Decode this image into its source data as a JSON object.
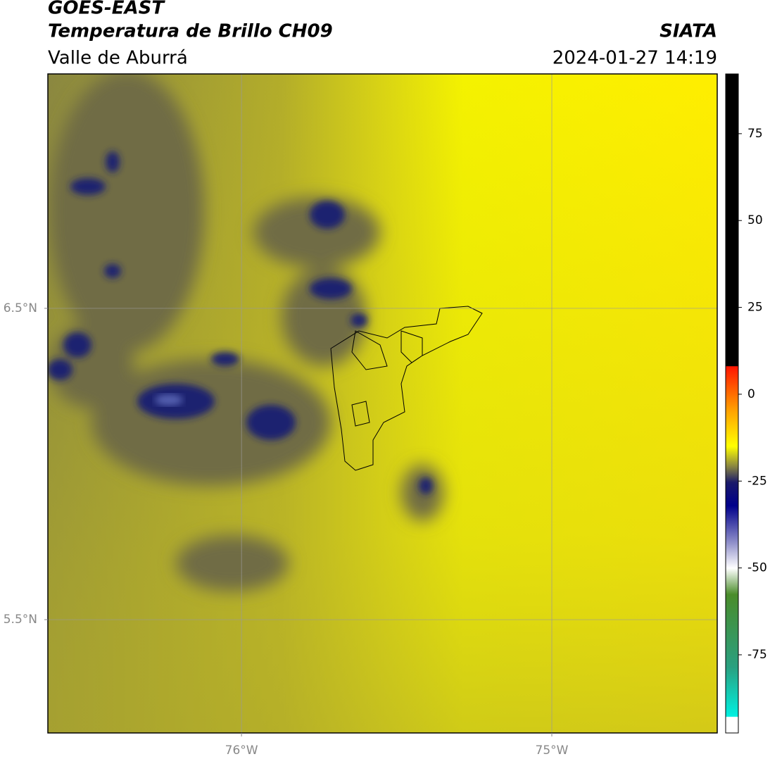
{
  "header": {
    "title": "GOES-EAST",
    "subtitle": "Temperatura de Brillo CH09",
    "region": "Valle de Aburrá",
    "source": "SIATA",
    "datetime": "2024-01-27 14:19"
  },
  "map": {
    "lonlim": [
      -76.624,
      -74.467
    ],
    "latlim": [
      5.136,
      7.253
    ],
    "xticks": [
      {
        "value": -76,
        "label": "76°W"
      },
      {
        "value": -75,
        "label": "75°W"
      }
    ],
    "yticks": [
      {
        "value": 6.5,
        "label": "6.5°N"
      },
      {
        "value": 5.5,
        "label": "5.5°N"
      }
    ],
    "grid": true
  },
  "colorbar": {
    "lim": [
      -97.5,
      92.2
    ],
    "ticks": [
      -75,
      -50,
      -25,
      0,
      25,
      50,
      75
    ]
  }
}
